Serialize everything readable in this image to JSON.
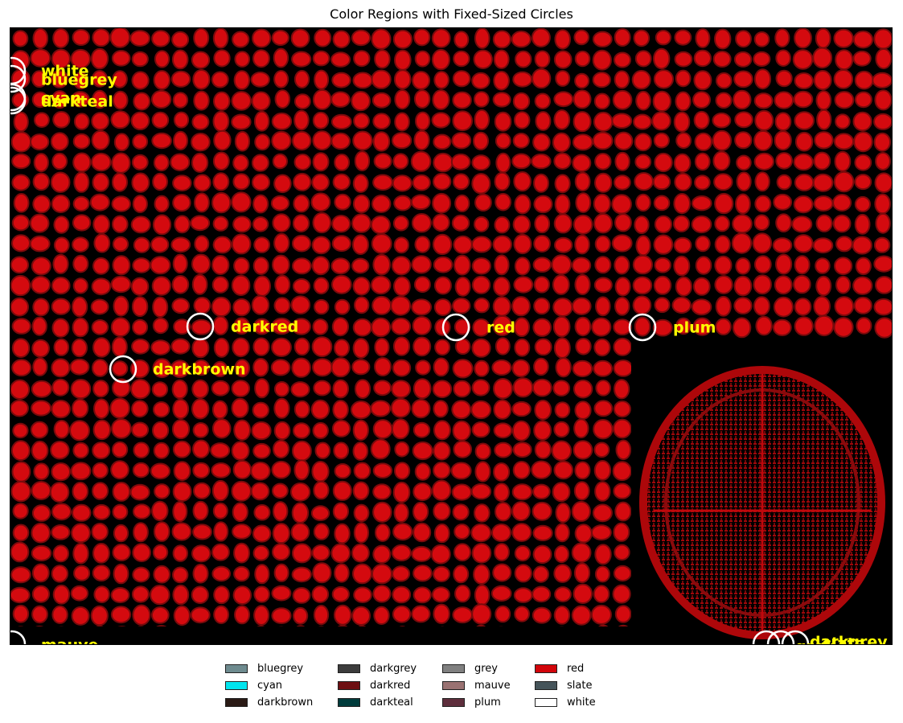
{
  "title": "Color Regions with Fixed-Sized Circles",
  "markers": [
    {
      "label": "white"
    },
    {
      "label": "bluegrey"
    },
    {
      "label": "cyan"
    },
    {
      "label": "darkteal"
    },
    {
      "label": "darkred"
    },
    {
      "label": "red"
    },
    {
      "label": "plum"
    },
    {
      "label": "darkbrown"
    },
    {
      "label": "mauve"
    },
    {
      "label": "darkgrey"
    },
    {
      "label": "slate"
    },
    {
      "label": "grey"
    }
  ],
  "legend": [
    {
      "label": "bluegrey",
      "color": "#6e8b8f"
    },
    {
      "label": "cyan",
      "color": "#00e5ee"
    },
    {
      "label": "darkbrown",
      "color": "#2a1a15"
    },
    {
      "label": "darkgrey",
      "color": "#3c3c3c"
    },
    {
      "label": "darkred",
      "color": "#6e0f12"
    },
    {
      "label": "darkteal",
      "color": "#003c3c"
    },
    {
      "label": "grey",
      "color": "#808080"
    },
    {
      "label": "mauve",
      "color": "#9a7272"
    },
    {
      "label": "plum",
      "color": "#5e2e3c"
    },
    {
      "label": "red",
      "color": "#d2050a"
    },
    {
      "label": "slate",
      "color": "#45545a"
    },
    {
      "label": "white",
      "color": "#ffffff"
    }
  ],
  "colors": {
    "label_text": "#ffff00",
    "circle_stroke": "#ffffff",
    "blob_fill": "#d40a0f",
    "blob_edge": "#7a0a0c",
    "background": "#000000"
  }
}
